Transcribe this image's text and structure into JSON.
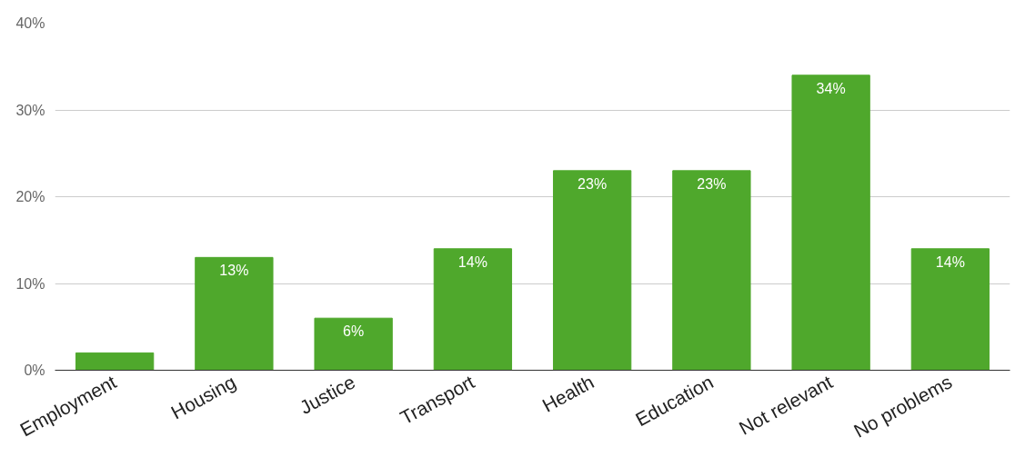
{
  "chart_data": {
    "type": "bar",
    "categories": [
      "Employment",
      "Housing",
      "Justice",
      "Transport",
      "Health",
      "Education",
      "Not relevant",
      "No problems"
    ],
    "values": [
      2,
      13,
      6,
      14,
      23,
      23,
      34,
      14
    ],
    "value_labels": [
      null,
      "13%",
      "6%",
      "14%",
      "23%",
      "23%",
      "34%",
      "14%"
    ],
    "color": "#4fa82c",
    "ylim": [
      0,
      40
    ],
    "yticks": [
      {
        "value": 0,
        "label": "0%"
      },
      {
        "value": 10,
        "label": "10%"
      },
      {
        "value": 20,
        "label": "20%"
      },
      {
        "value": 30,
        "label": "30%"
      },
      {
        "value": 40,
        "label": "40%"
      }
    ],
    "grid": "y"
  }
}
